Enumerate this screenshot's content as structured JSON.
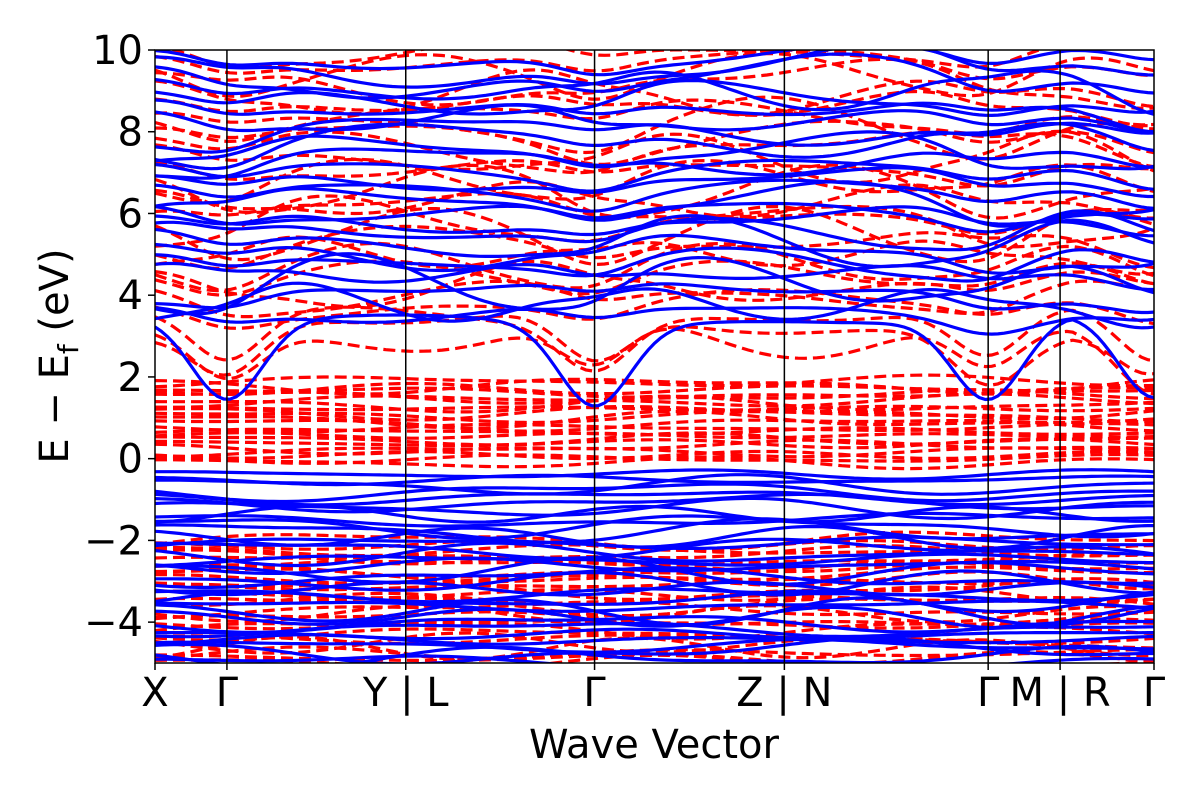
{
  "chart_data": {
    "type": "line",
    "title": "",
    "xlabel": "Wave Vector",
    "ylabel": {
      "main": "E − E",
      "subscript": "f",
      "unit": " (eV)"
    },
    "ylim": [
      -5,
      10
    ],
    "yticks": [
      {
        "value": 10,
        "label": "10"
      },
      {
        "value": 8,
        "label": "8"
      },
      {
        "value": 6,
        "label": "6"
      },
      {
        "value": 4,
        "label": "4"
      },
      {
        "value": 2,
        "label": "2"
      },
      {
        "value": 0,
        "label": "0"
      },
      {
        "value": -2,
        "label": "−2"
      },
      {
        "value": -4,
        "label": "−4"
      }
    ],
    "xlim": [
      0,
      1
    ],
    "kpoints": [
      {
        "x": 0.0,
        "label": "X"
      },
      {
        "x": 0.072,
        "label": "Γ"
      },
      {
        "x": 0.251,
        "label": "Y | L"
      },
      {
        "x": 0.44,
        "label": "Γ"
      },
      {
        "x": 0.63,
        "label": "Z | N"
      },
      {
        "x": 0.834,
        "label": "Γ"
      },
      {
        "x": 0.906,
        "label": "M | R"
      },
      {
        "x": 1.0,
        "label": "Γ"
      }
    ],
    "grid": false,
    "legend": "none",
    "series_styles": [
      {
        "name": "",
        "color": "#0000ff",
        "linestyle": "solid"
      },
      {
        "name": "",
        "color": "#ff0000",
        "linestyle": "dashed"
      }
    ]
  }
}
